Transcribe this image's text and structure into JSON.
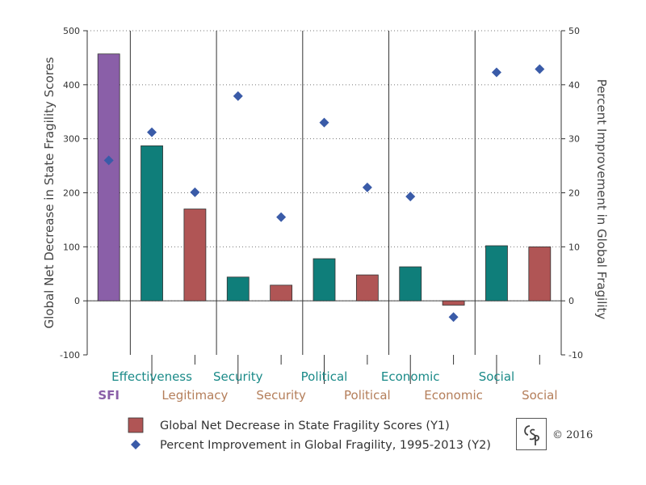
{
  "chart_data": {
    "type": "bar",
    "categories": [
      "SFI",
      "Effectiveness",
      "Legitimacy",
      "Security",
      "Security",
      "Political",
      "Political",
      "Economic",
      "Economic",
      "Social",
      "Social"
    ],
    "category_groups": [
      {
        "label": "SFI",
        "bars": [
          0
        ]
      },
      {
        "label": "Security",
        "bars": [
          3,
          4
        ]
      },
      {
        "label": "Political",
        "bars": [
          5,
          6
        ]
      },
      {
        "label": "Economic",
        "bars": [
          7,
          8
        ]
      },
      {
        "label": "Social",
        "bars": [
          9,
          10
        ]
      }
    ],
    "series": [
      {
        "name": "Global Net Decrease in State Fragility Scores (Y1)",
        "axis": "y1",
        "type": "bar",
        "values": [
          457,
          287,
          170,
          44,
          29,
          78,
          48,
          63,
          -8,
          102,
          100
        ],
        "colors": [
          "#8a5fa8",
          "#0f7e7a",
          "#b05555",
          "#0f7e7a",
          "#b05555",
          "#0f7e7a",
          "#b05555",
          "#0f7e7a",
          "#b05555",
          "#0f7e7a",
          "#b05555"
        ]
      },
      {
        "name": "Percent Improvement in Global Fragility, 1995-2013 (Y2)",
        "axis": "y2",
        "type": "scatter",
        "marker": "diamond",
        "color": "#3a5ba8",
        "values": [
          26,
          31.2,
          20.1,
          37.9,
          15.5,
          33,
          21,
          19.3,
          -3,
          42.3,
          42.9
        ]
      }
    ],
    "y1": {
      "label": "Global Net Decrease in State Fragility Scores",
      "ylim": [
        -100,
        500
      ],
      "ticks": [
        -100,
        0,
        100,
        200,
        300,
        400,
        500
      ]
    },
    "y2": {
      "label": "Percent Improvement in Global Fragility",
      "ylim": [
        -10,
        50
      ],
      "ticks": [
        -10,
        0,
        10,
        20,
        30,
        40,
        50
      ]
    },
    "label_colors": {
      "sfi": "#8a5fa8",
      "effectiveness": "#1a8a88",
      "legitimacy": "#b47e5a"
    },
    "grid": true,
    "legend": {
      "position": "bottom",
      "entries": [
        {
          "label": "Global Net Decrease in State Fragility Scores (Y1)",
          "symbol": "square",
          "color": "#b05555"
        },
        {
          "label": "Percent Improvement in Global Fragility, 1995-2013 (Y2)",
          "symbol": "diamond",
          "color": "#3a5ba8"
        }
      ]
    }
  },
  "footer": {
    "logo_text": "CSP",
    "copyright": "© 2016"
  }
}
